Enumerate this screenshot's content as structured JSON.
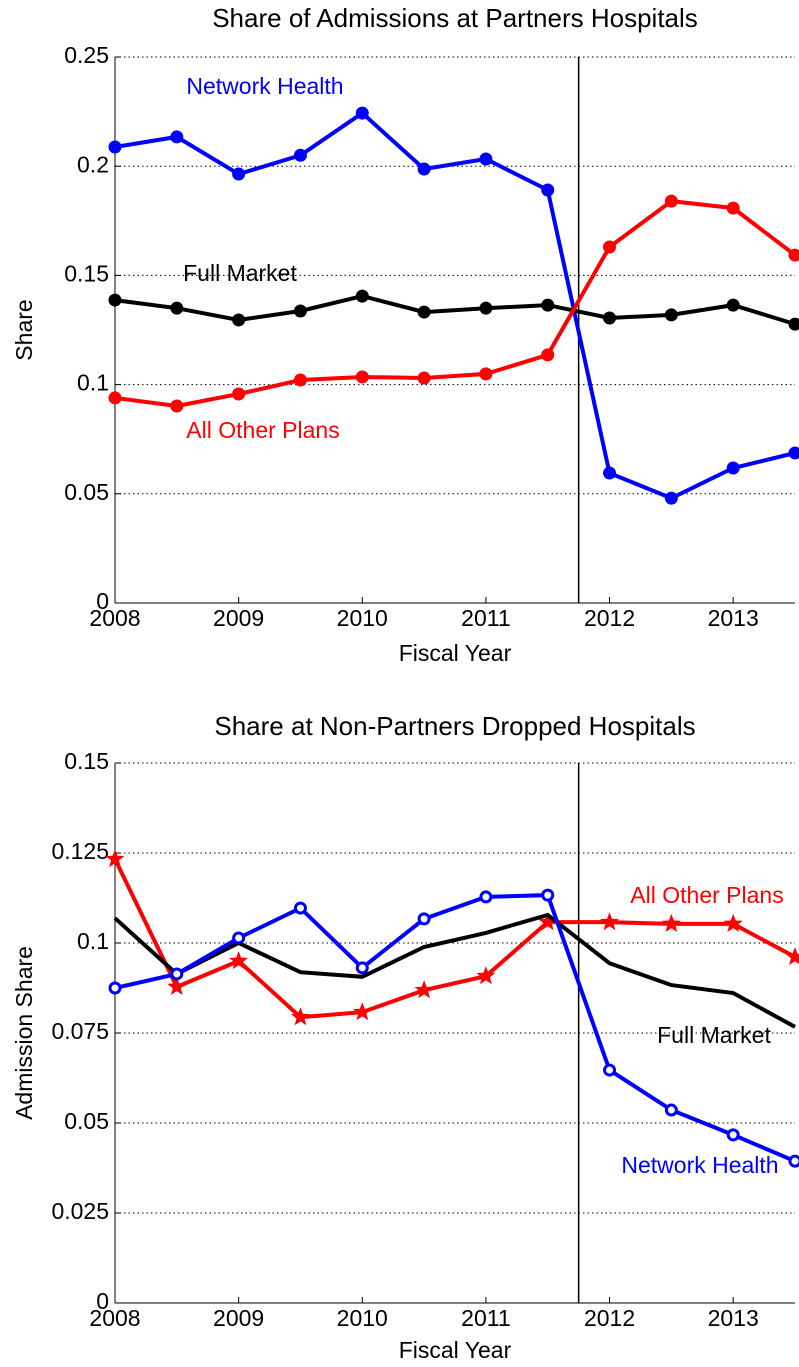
{
  "chart_data": [
    {
      "type": "line",
      "title": "Share of Admissions at Partners Hospitals",
      "xlabel": "Fiscal Year",
      "ylabel": "Share",
      "x": [
        2008,
        2008.5,
        2009,
        2009.5,
        2010,
        2010.5,
        2011,
        2011.5,
        2012,
        2012.5,
        2013,
        2013.5
      ],
      "xlim": [
        2008,
        2013.5
      ],
      "xticks": [
        2008,
        2009,
        2010,
        2011,
        2012,
        2013
      ],
      "ylim": [
        0,
        0.25
      ],
      "yticks": [
        0,
        0.05,
        0.1,
        0.15,
        0.2,
        0.25
      ],
      "grid": true,
      "vline": 2011.75,
      "series": [
        {
          "name": "Network Health",
          "color": "#0000ff",
          "marker": "circle",
          "values": [
            0.2088,
            0.2134,
            0.1964,
            0.205,
            0.2243,
            0.1987,
            0.2033,
            0.1891,
            0.0595,
            0.048,
            0.0618,
            0.0687
          ]
        },
        {
          "name": "Full Market",
          "color": "#000000",
          "marker": "circle",
          "values": [
            0.1387,
            0.135,
            0.1296,
            0.1337,
            0.1405,
            0.1332,
            0.135,
            0.1364,
            0.1305,
            0.1319,
            0.1364,
            0.1277
          ]
        },
        {
          "name": "All Other Plans",
          "color": "#ff0000",
          "marker": "circle",
          "values": [
            0.0939,
            0.0902,
            0.0957,
            0.1021,
            0.1035,
            0.103,
            0.1049,
            0.1136,
            0.163,
            0.184,
            0.1808,
            0.1593
          ]
        }
      ]
    },
    {
      "type": "line",
      "title": "Share at Non-Partners Dropped Hospitals",
      "xlabel": "Fiscal Year",
      "ylabel": "Admission Share",
      "x": [
        2008,
        2008.5,
        2009,
        2009.5,
        2010,
        2010.5,
        2011,
        2011.5,
        2012,
        2012.5,
        2013,
        2013.5
      ],
      "xlim": [
        2008,
        2013.5
      ],
      "xticks": [
        2008,
        2009,
        2010,
        2011,
        2012,
        2013
      ],
      "ylim": [
        0,
        0.15
      ],
      "yticks": [
        0,
        0.025,
        0.05,
        0.075,
        0.1,
        0.125,
        0.15
      ],
      "grid": true,
      "vline": 2011.75,
      "series": [
        {
          "name": "All Other Plans",
          "color": "#ff0000",
          "marker": "star",
          "values": [
            0.1233,
            0.0878,
            0.095,
            0.0794,
            0.0808,
            0.0869,
            0.0908,
            0.1058,
            0.1058,
            0.1053,
            0.1053,
            0.0961
          ]
        },
        {
          "name": "Full Market",
          "color": "#000000",
          "marker": "none",
          "values": [
            0.1069,
            0.0914,
            0.1,
            0.0919,
            0.0906,
            0.0989,
            0.1028,
            0.1078,
            0.0944,
            0.0883,
            0.0861,
            0.0767
          ]
        },
        {
          "name": "Network Health",
          "color": "#0000ff",
          "marker": "ring",
          "values": [
            0.0875,
            0.0914,
            0.1014,
            0.1097,
            0.0931,
            0.1067,
            0.1128,
            0.1133,
            0.0647,
            0.0536,
            0.0467,
            0.0394
          ]
        }
      ]
    }
  ]
}
